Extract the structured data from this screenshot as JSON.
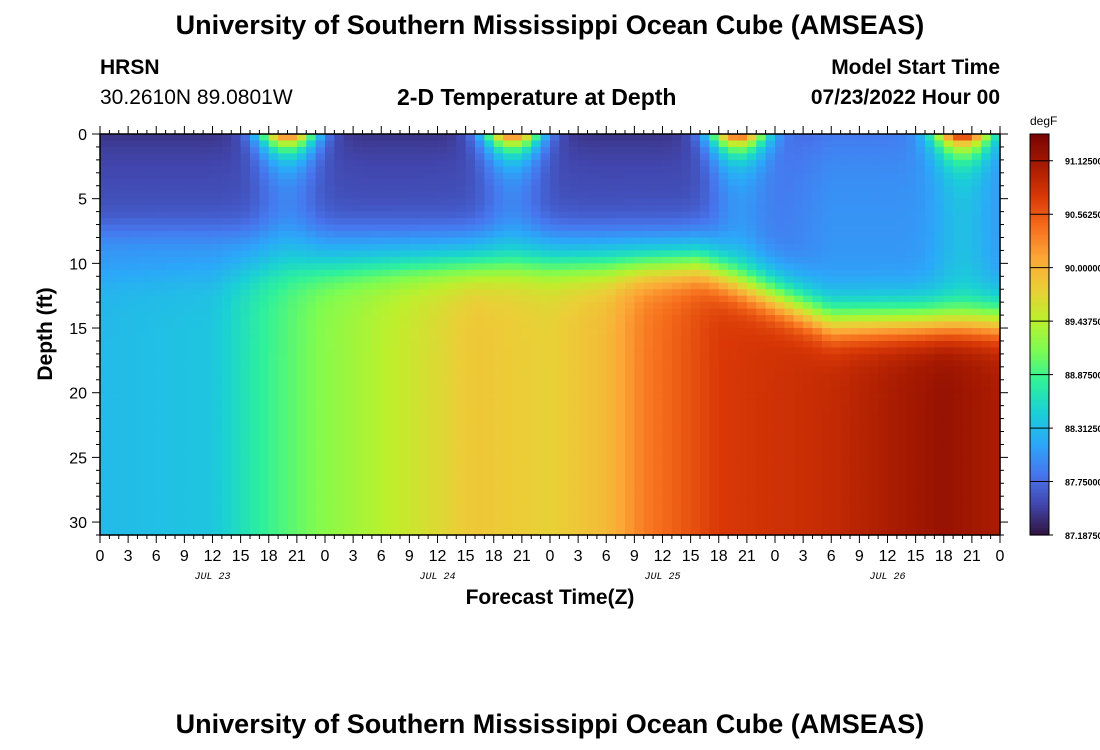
{
  "header": {
    "title": "University of Southern Mississippi Ocean Cube (AMSEAS)",
    "station": "HRSN",
    "coords": "30.2610N  89.0801W",
    "subtitle": "2-D Temperature at Depth",
    "model_start_label": "Model Start Time",
    "model_start_date": "07/23/2022 Hour 00"
  },
  "footer": {
    "title": "University of Southern Mississippi Ocean Cube (AMSEAS)"
  },
  "chart_data": {
    "type": "heatmap",
    "title": "2-D Temperature at Depth",
    "xlabel": "Forecast Time(Z)",
    "ylabel": "Depth (ft)",
    "xlim": [
      0,
      96
    ],
    "ylim": [
      0,
      31
    ],
    "x_tick_step_hours": 3,
    "x_tick_labels": [
      "0",
      "3",
      "6",
      "9",
      "12",
      "15",
      "18",
      "21",
      "0",
      "3",
      "6",
      "9",
      "12",
      "15",
      "18",
      "21",
      "0",
      "3",
      "6",
      "9",
      "12",
      "15",
      "18",
      "21",
      "0",
      "3",
      "6",
      "9",
      "12",
      "15",
      "18",
      "21",
      "0"
    ],
    "date_labels": [
      {
        "label": "JUL 23",
        "hour": 12
      },
      {
        "label": "JUL 24",
        "hour": 36
      },
      {
        "label": "JUL 25",
        "hour": 60
      },
      {
        "label": "JUL 26",
        "hour": 84
      }
    ],
    "y_ticks": [
      0,
      5,
      10,
      15,
      20,
      25,
      30
    ],
    "y_tick_labels": [
      "0",
      "5",
      "10",
      "15",
      "20",
      "25",
      "30"
    ],
    "colorbar": {
      "unit": "degF",
      "min": 87.1875,
      "max": 91.40625,
      "tick_values": [
        91.125,
        90.5625,
        90.0,
        89.4375,
        88.875,
        88.3125,
        87.75,
        87.1875
      ],
      "tick_labels": [
        "91.12500",
        "90.56250",
        "90.00000",
        "89.43750",
        "88.87500",
        "88.31250",
        "87.75000",
        "87.18750"
      ]
    },
    "surface_warm_peaks_hour": [
      20,
      44,
      68,
      92
    ],
    "deep_temperature_profile": [
      {
        "hour": 0,
        "degF": 88.3
      },
      {
        "hour": 12,
        "degF": 88.4
      },
      {
        "hour": 18,
        "degF": 88.85
      },
      {
        "hour": 24,
        "degF": 89.2
      },
      {
        "hour": 33,
        "degF": 89.55
      },
      {
        "hour": 40,
        "degF": 89.85
      },
      {
        "hour": 48,
        "degF": 89.75
      },
      {
        "hour": 54,
        "degF": 89.95
      },
      {
        "hour": 58,
        "degF": 90.35
      },
      {
        "hour": 66,
        "degF": 90.75
      },
      {
        "hour": 78,
        "degF": 90.9
      },
      {
        "hour": 90,
        "degF": 91.2
      },
      {
        "hour": 96,
        "degF": 91.05
      }
    ],
    "colormap": [
      "#30123b",
      "#4146ad",
      "#4777ef",
      "#2ba8f9",
      "#1ad0d5",
      "#2ff19b",
      "#7dfc51",
      "#bcf02c",
      "#ebce37",
      "#fca737",
      "#f66e1c",
      "#d93806",
      "#a71a01",
      "#7a0403"
    ]
  }
}
